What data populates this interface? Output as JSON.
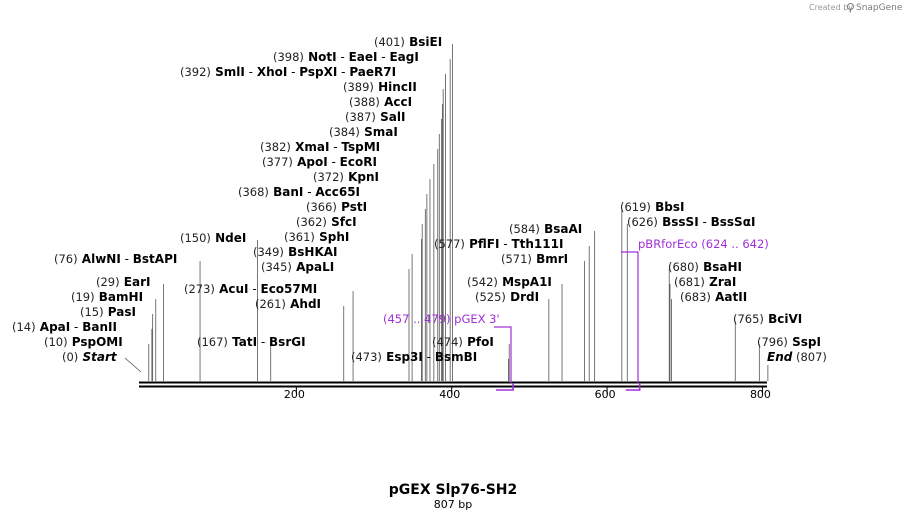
{
  "credit": {
    "text": "Created by",
    "brand": "SnapGene"
  },
  "map": {
    "title": "pGEX Slp76-SH2",
    "length_label": "807 bp",
    "length_bp": 807,
    "ticks": [
      "200",
      "400",
      "600",
      "800"
    ],
    "start_label": {
      "num": "(0)",
      "name": "Start",
      "pos": 0
    },
    "end_label": {
      "num": "(807)",
      "name": "End",
      "pos": 807
    },
    "sites": [
      {
        "num": "(401)",
        "names": [
          "BsiEI"
        ],
        "pos": 401
      },
      {
        "num": "(398)",
        "names": [
          "NotI",
          "EaeI",
          "EagI"
        ],
        "pos": 398
      },
      {
        "num": "(392)",
        "names": [
          "SmlI",
          "XhoI",
          "PspXI",
          "PaeR7I"
        ],
        "pos": 392
      },
      {
        "num": "(389)",
        "names": [
          "HincII"
        ],
        "pos": 389
      },
      {
        "num": "(388)",
        "names": [
          "AccI"
        ],
        "pos": 388
      },
      {
        "num": "(387)",
        "names": [
          "SalI"
        ],
        "pos": 387
      },
      {
        "num": "(384)",
        "names": [
          "SmaI"
        ],
        "pos": 384
      },
      {
        "num": "(382)",
        "names": [
          "XmaI",
          "TspMI"
        ],
        "pos": 382
      },
      {
        "num": "(377)",
        "names": [
          "ApoI",
          "EcoRI"
        ],
        "pos": 377
      },
      {
        "num": "(372)",
        "names": [
          "KpnI"
        ],
        "pos": 372
      },
      {
        "num": "(368)",
        "names": [
          "BanI",
          "Acc65I"
        ],
        "pos": 368
      },
      {
        "num": "(366)",
        "names": [
          "PstI"
        ],
        "pos": 366
      },
      {
        "num": "(362)",
        "names": [
          "SfcI"
        ],
        "pos": 362
      },
      {
        "num": "(361)",
        "names": [
          "SphI"
        ],
        "pos": 361
      },
      {
        "num": "(349)",
        "names": [
          "BsHKAI"
        ],
        "pos": 349
      },
      {
        "num": "(345)",
        "names": [
          "ApaLI"
        ],
        "pos": 345
      },
      {
        "num": "(150)",
        "names": [
          "NdeI"
        ],
        "pos": 150
      },
      {
        "num": "(76)",
        "names": [
          "AlwNI",
          "BstAPI"
        ],
        "pos": 76
      },
      {
        "num": "(29)",
        "names": [
          "EarI"
        ],
        "pos": 29
      },
      {
        "num": "(19)",
        "names": [
          "BamHI"
        ],
        "pos": 19
      },
      {
        "num": "(15)",
        "names": [
          "PasI"
        ],
        "pos": 15
      },
      {
        "num": "(14)",
        "names": [
          "ApaI",
          "BanII"
        ],
        "pos": 14
      },
      {
        "num": "(10)",
        "names": [
          "PspOMI"
        ],
        "pos": 10
      },
      {
        "num": "(273)",
        "names": [
          "AcuI",
          "Eco57MI"
        ],
        "pos": 273
      },
      {
        "num": "(261)",
        "names": [
          "AhdI"
        ],
        "pos": 261
      },
      {
        "num": "(167)",
        "names": [
          "TatI",
          "BsrGI"
        ],
        "pos": 167
      },
      {
        "num": "(473)",
        "names": [
          "Esp3I",
          "BsmBI"
        ],
        "pos": 473
      },
      {
        "num": "(474)",
        "names": [
          "PfoI"
        ],
        "pos": 474
      },
      {
        "num": "(577)",
        "names": [
          "PflFI",
          "Tth111I"
        ],
        "pos": 577
      },
      {
        "num": "(584)",
        "names": [
          "BsaAI"
        ],
        "pos": 584
      },
      {
        "num": "(571)",
        "names": [
          "BmrI"
        ],
        "pos": 571
      },
      {
        "num": "(542)",
        "names": [
          "MspA1I"
        ],
        "pos": 542
      },
      {
        "num": "(525)",
        "names": [
          "DrdI"
        ],
        "pos": 525
      },
      {
        "num": "(619)",
        "names": [
          "BbsI"
        ],
        "pos": 619
      },
      {
        "num": "(626)",
        "names": [
          "BssSI",
          "BssSαI"
        ],
        "pos": 626
      },
      {
        "num": "(680)",
        "names": [
          "BsaHI"
        ],
        "pos": 680
      },
      {
        "num": "(681)",
        "names": [
          "ZraI"
        ],
        "pos": 681
      },
      {
        "num": "(683)",
        "names": [
          "AatII"
        ],
        "pos": 683
      },
      {
        "num": "(765)",
        "names": [
          "BciVI"
        ],
        "pos": 765
      },
      {
        "num": "(796)",
        "names": [
          "SspI"
        ],
        "pos": 796
      }
    ],
    "primers": [
      {
        "name": "pGEX 3'",
        "range": "(457 .. 479)",
        "start": 457,
        "end": 479,
        "color": "#a030d8"
      },
      {
        "name": "pBRforEco",
        "range": "(624 .. 642)",
        "start": 624,
        "end": 642,
        "color": "#a030d8"
      }
    ]
  }
}
